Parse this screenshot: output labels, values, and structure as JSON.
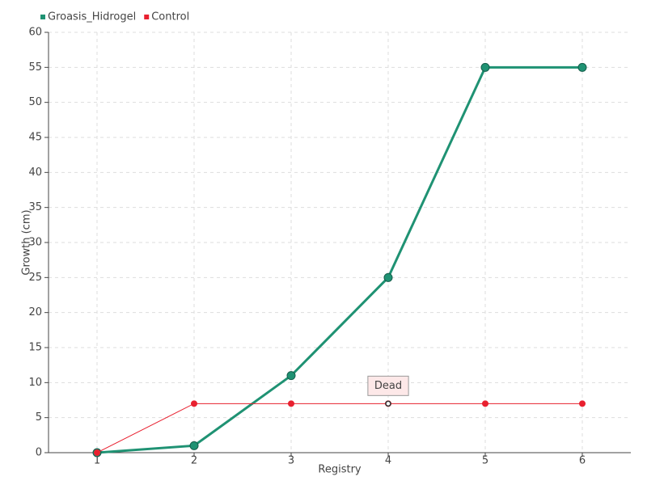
{
  "chart_data": {
    "type": "line",
    "x_label": "Registry",
    "y_label": "Growth (cm)",
    "x": [
      1,
      2,
      3,
      4,
      5,
      6
    ],
    "series": [
      {
        "name": "Groasis_Hidrogel",
        "color": "#1f9273",
        "values": [
          0,
          1,
          11,
          25,
          55,
          55
        ]
      },
      {
        "name": "Control",
        "color": "#e8202f",
        "values": [
          0,
          7,
          7,
          7,
          7,
          7
        ]
      }
    ],
    "xlim": [
      0.5,
      6.5
    ],
    "xticks": [
      1,
      2,
      3,
      4,
      5,
      6
    ],
    "ylim": [
      0,
      60
    ],
    "yticks": [
      0,
      5,
      10,
      15,
      20,
      25,
      30,
      35,
      40,
      45,
      50,
      55,
      60
    ],
    "grid": true,
    "legend": "top-left",
    "annotations": [
      {
        "text": "Dead",
        "x": 4,
        "y": 7
      }
    ]
  }
}
